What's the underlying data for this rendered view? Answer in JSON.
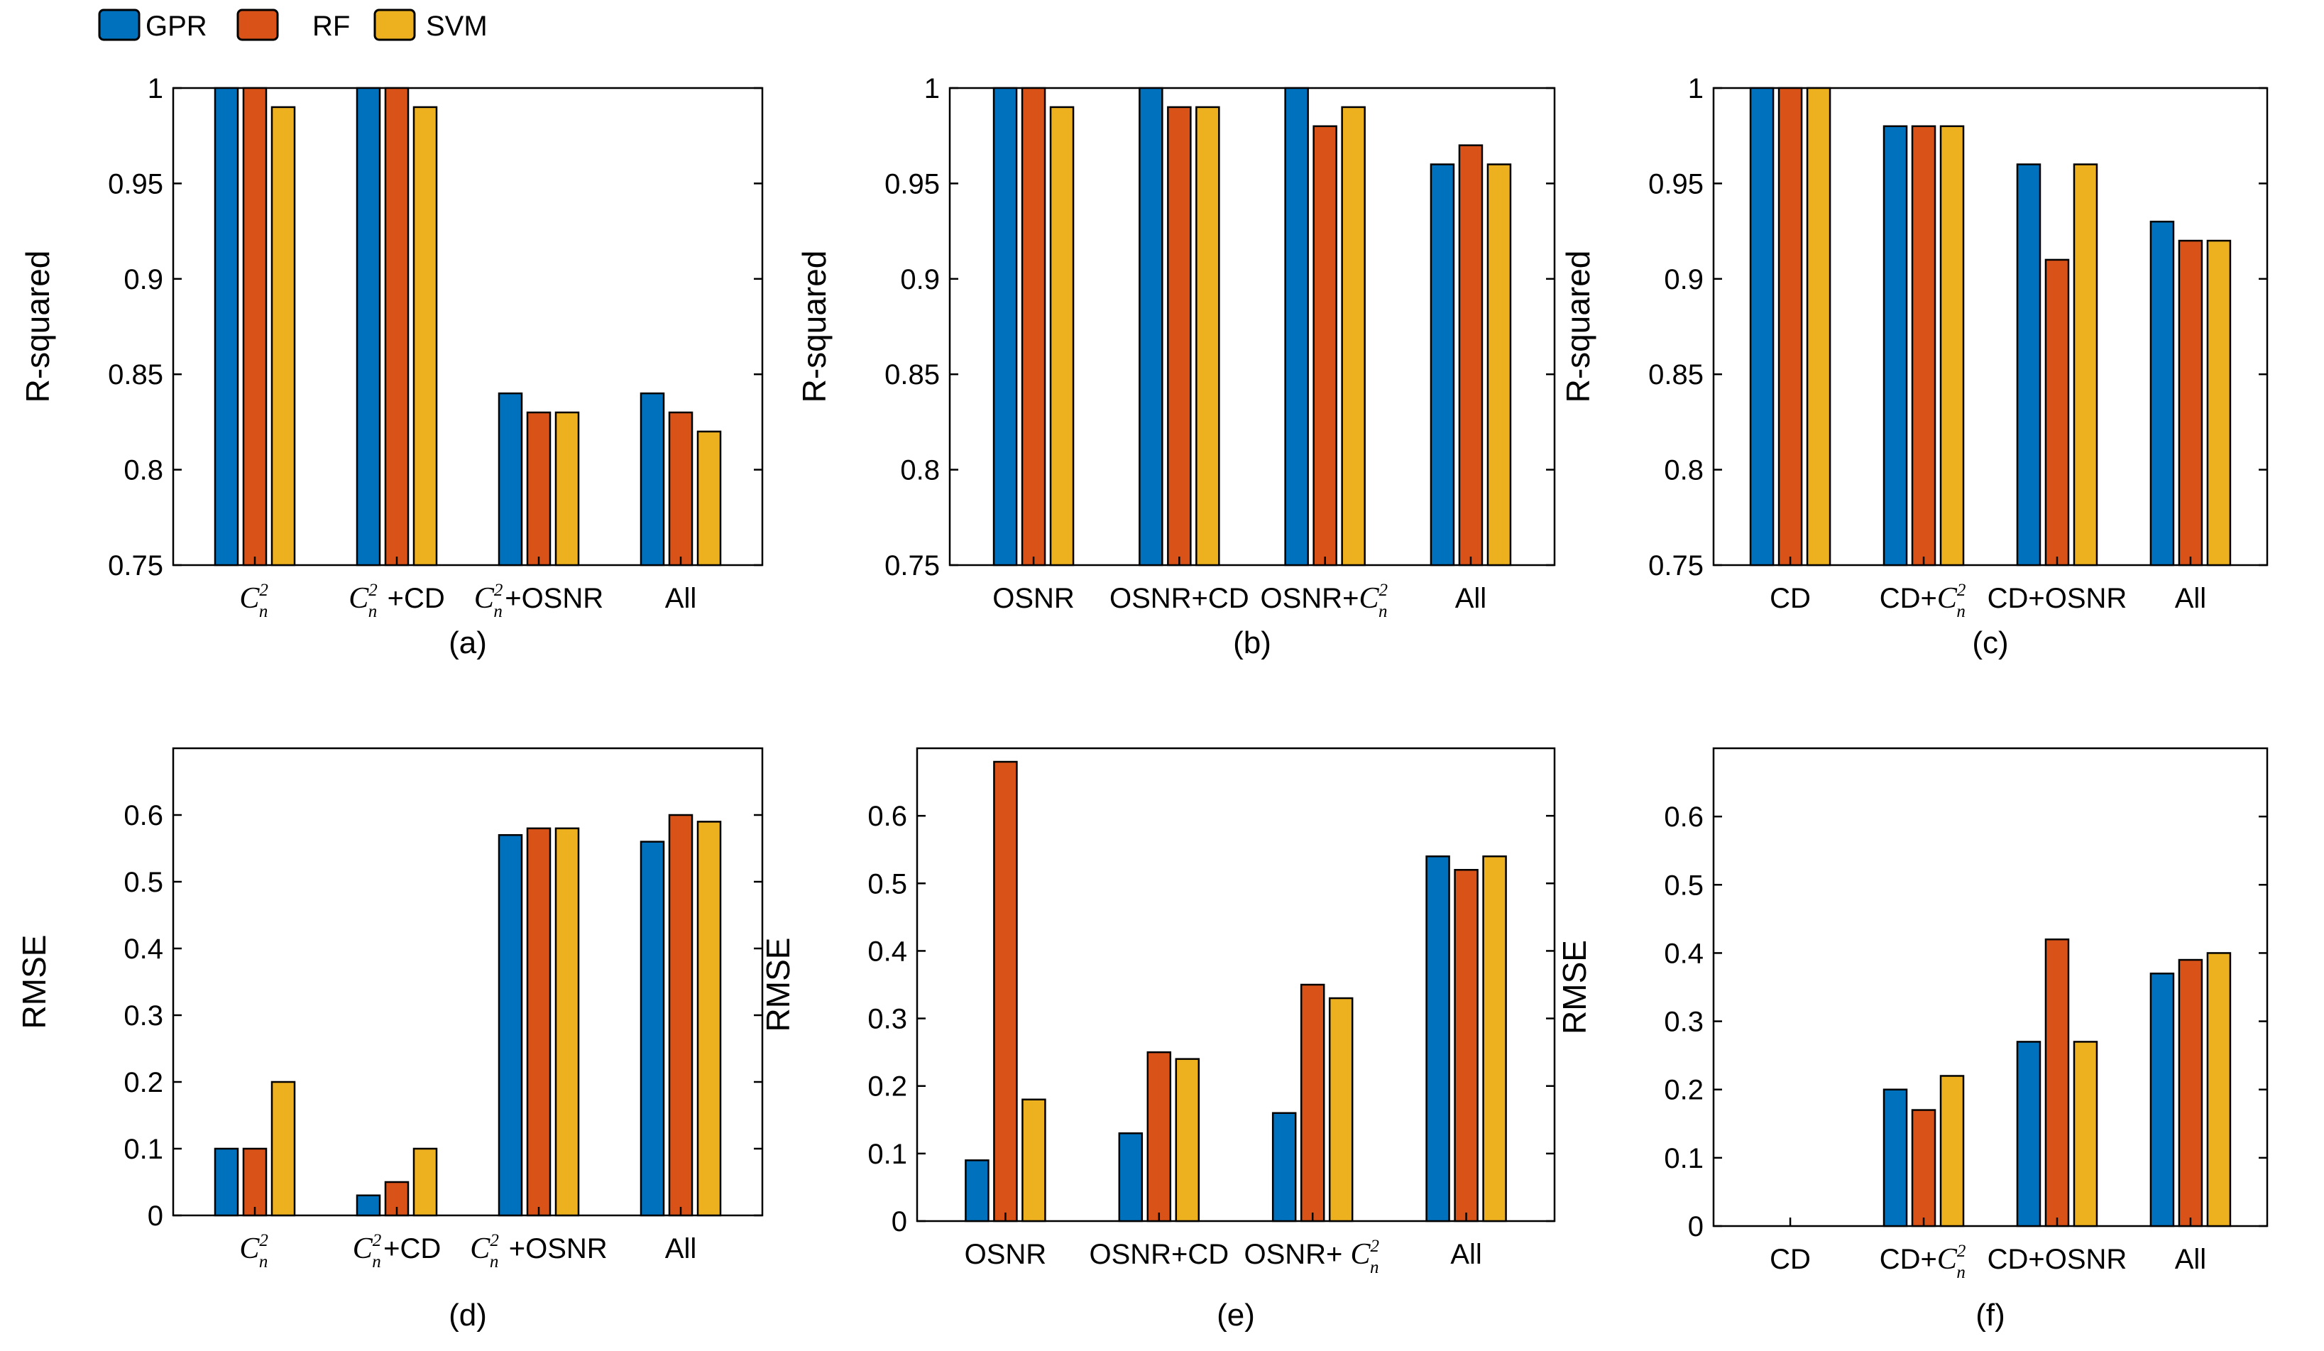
{
  "legend": {
    "position": "top-left",
    "entries": [
      {
        "name": "GPR",
        "color": "#0072BD"
      },
      {
        "name": "RF",
        "color": "#D95319"
      },
      {
        "name": "SVM",
        "color": "#EDB120"
      }
    ]
  },
  "chart_data": [
    {
      "id": "a",
      "type": "bar",
      "caption": "(a)",
      "ylabel": "R-squared",
      "ylim": [
        0.75,
        1
      ],
      "yticks": [
        0.75,
        0.8,
        0.85,
        0.9,
        0.95,
        1
      ],
      "yticklabels": [
        "0.75",
        "0.8",
        "0.85",
        "0.9",
        "0.95",
        "1"
      ],
      "grid": false,
      "categories": [
        "C_n^2",
        "C_n^2 +CD",
        "C_n^2+OSNR",
        "All"
      ],
      "series": [
        {
          "name": "GPR",
          "values": [
            1,
            1,
            0.84,
            0.84
          ]
        },
        {
          "name": "RF",
          "values": [
            1,
            1,
            0.83,
            0.83
          ]
        },
        {
          "name": "SVM",
          "values": [
            0.99,
            0.99,
            0.83,
            0.82
          ]
        }
      ]
    },
    {
      "id": "b",
      "type": "bar",
      "caption": "(b)",
      "ylabel": "R-squared",
      "ylim": [
        0.75,
        1
      ],
      "yticks": [
        0.75,
        0.8,
        0.85,
        0.9,
        0.95,
        1
      ],
      "yticklabels": [
        "0.75",
        "0.8",
        "0.85",
        "0.9",
        "0.95",
        "1"
      ],
      "grid": false,
      "categories": [
        "OSNR",
        "OSNR+CD",
        "OSNR+C_n^2",
        "All"
      ],
      "series": [
        {
          "name": "GPR",
          "values": [
            1,
            1,
            1,
            0.96
          ]
        },
        {
          "name": "RF",
          "values": [
            1,
            0.99,
            0.98,
            0.97
          ]
        },
        {
          "name": "SVM",
          "values": [
            0.99,
            0.99,
            0.99,
            0.96
          ]
        }
      ]
    },
    {
      "id": "c",
      "type": "bar",
      "caption": "(c)",
      "ylabel": "R-squared",
      "ylim": [
        0.75,
        1
      ],
      "yticks": [
        0.75,
        0.8,
        0.85,
        0.9,
        0.95,
        1
      ],
      "yticklabels": [
        "0.75",
        "0.8",
        "0.85",
        "0.9",
        "0.95",
        "1"
      ],
      "grid": false,
      "categories": [
        "CD",
        "CD+C_n^2",
        "CD+OSNR",
        "All"
      ],
      "series": [
        {
          "name": "GPR",
          "values": [
            1,
            0.98,
            0.96,
            0.93
          ]
        },
        {
          "name": "RF",
          "values": [
            1,
            0.98,
            0.91,
            0.92
          ]
        },
        {
          "name": "SVM",
          "values": [
            1,
            0.98,
            0.96,
            0.92
          ]
        }
      ]
    },
    {
      "id": "d",
      "type": "bar",
      "caption": "(d)",
      "ylabel": "RMSE",
      "ylim": [
        0,
        0.7
      ],
      "yticks": [
        0,
        0.1,
        0.2,
        0.3,
        0.4,
        0.5,
        0.6
      ],
      "yticklabels": [
        "0",
        "0.1",
        "0.2",
        "0.3",
        "0.4",
        "0.5",
        "0.6"
      ],
      "grid": false,
      "categories": [
        "C_n^2",
        "C_n^2+CD",
        "C_n^2 +OSNR",
        "All"
      ],
      "series": [
        {
          "name": "GPR",
          "values": [
            0.1,
            0.03,
            0.57,
            0.56
          ]
        },
        {
          "name": "RF",
          "values": [
            0.1,
            0.05,
            0.58,
            0.6
          ]
        },
        {
          "name": "SVM",
          "values": [
            0.2,
            0.1,
            0.58,
            0.59
          ]
        }
      ]
    },
    {
      "id": "e",
      "type": "bar",
      "caption": "(e)",
      "ylabel": "RMSE",
      "ylim": [
        0,
        0.7
      ],
      "yticks": [
        0,
        0.1,
        0.2,
        0.3,
        0.4,
        0.5,
        0.6
      ],
      "yticklabels": [
        "0",
        "0.1",
        "0.2",
        "0.3",
        "0.4",
        "0.5",
        "0.6"
      ],
      "grid": false,
      "categories": [
        "OSNR",
        "OSNR+CD",
        "OSNR+ C_n^2",
        "All"
      ],
      "series": [
        {
          "name": "GPR",
          "values": [
            0.09,
            0.13,
            0.16,
            0.54
          ]
        },
        {
          "name": "RF",
          "values": [
            0.68,
            0.25,
            0.35,
            0.52
          ]
        },
        {
          "name": "SVM",
          "values": [
            0.18,
            0.24,
            0.33,
            0.54
          ]
        }
      ]
    },
    {
      "id": "f",
      "type": "bar",
      "caption": "(f)",
      "ylabel": "RMSE",
      "ylim": [
        0,
        0.7
      ],
      "yticks": [
        0,
        0.1,
        0.2,
        0.3,
        0.4,
        0.5,
        0.6
      ],
      "yticklabels": [
        "0",
        "0.1",
        "0.2",
        "0.3",
        "0.4",
        "0.5",
        "0.6"
      ],
      "grid": false,
      "categories": [
        "CD",
        "CD+C_n^2",
        "CD+OSNR",
        "All"
      ],
      "series": [
        {
          "name": "GPR",
          "values": [
            0,
            0.2,
            0.27,
            0.37
          ]
        },
        {
          "name": "RF",
          "values": [
            0,
            0.17,
            0.42,
            0.39
          ]
        },
        {
          "name": "SVM",
          "values": [
            0,
            0.22,
            0.27,
            0.4
          ]
        }
      ]
    }
  ]
}
